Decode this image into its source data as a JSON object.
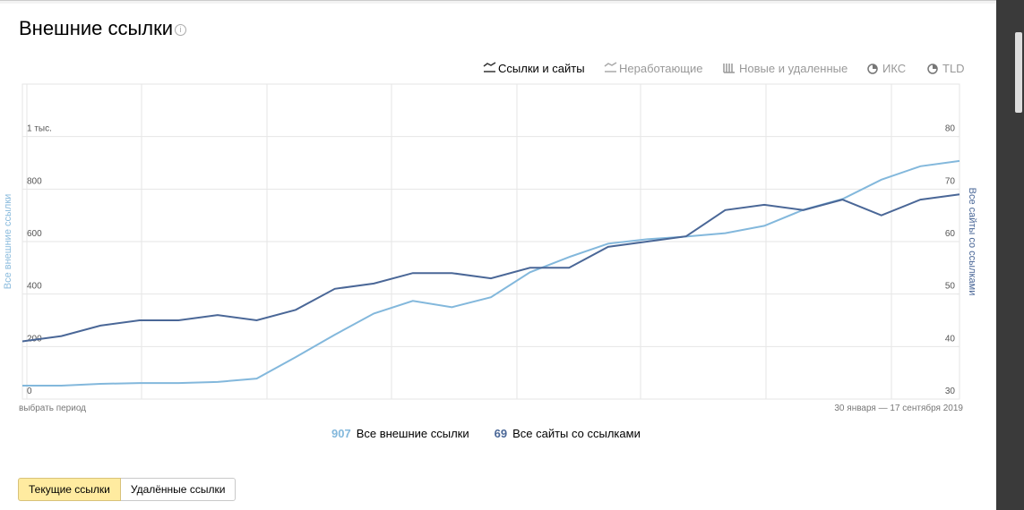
{
  "chart_data": {
    "type": "line",
    "title": "Внешние ссылки",
    "ylabel": "Все внешние ссылки",
    "y2label": "Все сайты со ссылками",
    "categories": [
      null,
      null,
      null,
      null,
      null,
      null,
      null,
      null,
      null,
      null,
      null,
      null,
      null,
      null,
      null,
      null,
      null,
      null,
      null,
      null,
      null,
      null,
      null,
      null,
      null
    ],
    "series": [
      {
        "name": "Все внешние ссылки",
        "color": "#83b8dc",
        "total": 907,
        "values": [
          51,
          51,
          58,
          61,
          61,
          65,
          78,
          160,
          245,
          326,
          374,
          350,
          388,
          483,
          541,
          592,
          609,
          619,
          632,
          660,
          721,
          762,
          836,
          887,
          907
        ]
      },
      {
        "name": "Все сайты со ссылками",
        "color": "#4a6797",
        "axis": "y2",
        "total": 69,
        "values": [
          41,
          42,
          44,
          45,
          45,
          46,
          45,
          47,
          51,
          52,
          54,
          54,
          53,
          55,
          55,
          59,
          60,
          61,
          66,
          67,
          66,
          68,
          65,
          68,
          69
        ]
      }
    ],
    "ylim": [
      0,
      1200
    ],
    "yticks": [
      0,
      200,
      400,
      600,
      800,
      {
        "value": 1000,
        "label": "1 тыс."
      }
    ],
    "y2lim": [
      30,
      90
    ],
    "y2ticks": [
      30,
      40,
      50,
      60,
      70,
      80
    ],
    "grid": true
  },
  "tabs": [
    "Ссылки и сайты",
    "Неработающие",
    "Новые и удаленные",
    "ИКС",
    "TLD"
  ],
  "active_tab": 0,
  "period_select": "выбрать период",
  "date_range": "30 января — 17 сентября 2019",
  "buttons": [
    "Текущие ссылки",
    "Удалённые ссылки"
  ]
}
